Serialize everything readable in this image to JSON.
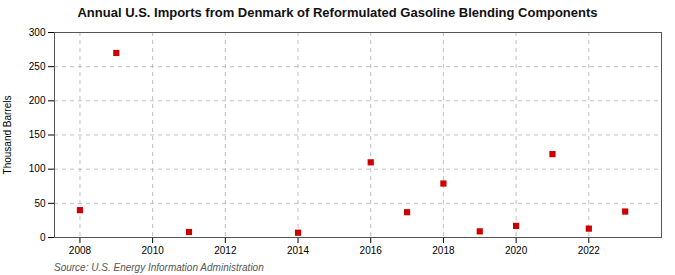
{
  "chart_data": {
    "type": "scatter",
    "title": "Annual U.S. Imports from Denmark of Reformulated Gasoline Blending Components",
    "ylabel": "Thousand Barrels",
    "source": "Source: U.S. Energy Information Administration",
    "x": [
      2008,
      2009,
      2011,
      2014,
      2016,
      2017,
      2018,
      2019,
      2020,
      2021,
      2022,
      2023
    ],
    "values": [
      40,
      270,
      8,
      7,
      110,
      37,
      79,
      9,
      17,
      122,
      13,
      38
    ],
    "color": "#cc0000",
    "marker": "square",
    "xlim": [
      2007.3,
      2024.0
    ],
    "ylim": [
      0,
      300
    ],
    "xticks": [
      2008,
      2010,
      2012,
      2014,
      2016,
      2018,
      2020,
      2022
    ],
    "yticks": [
      0,
      50,
      100,
      150,
      200,
      250,
      300
    ],
    "grid": true
  }
}
